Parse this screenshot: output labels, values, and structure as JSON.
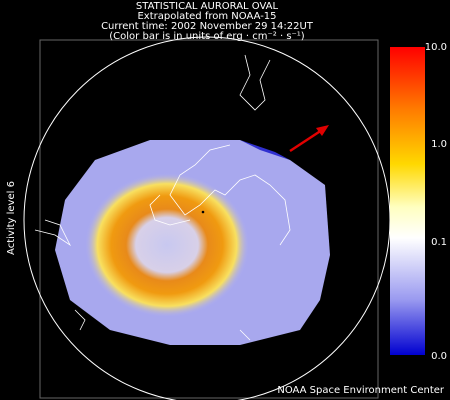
{
  "header": {
    "lines": [
      "STATISTICAL AURORAL OVAL",
      "Extrapolated from NOAA-15",
      "Current time: 2002 November 29 14:22UT",
      "(Color bar is in units of erg · cm⁻² · s⁻¹)"
    ]
  },
  "side_label": "Activity level 6",
  "colorbar": {
    "ticks": [
      "10.0",
      "1.0",
      "0.1",
      "0.0"
    ]
  },
  "footer": "NOAA Space Environment Center"
}
